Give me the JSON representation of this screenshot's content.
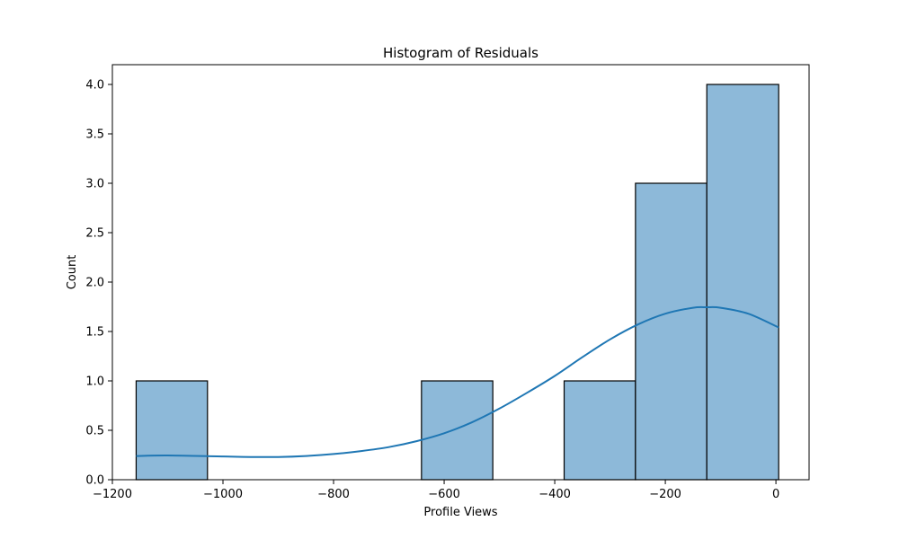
{
  "chart_data": {
    "type": "bar",
    "title": "Histogram of Residuals",
    "xlabel": "Profile Views",
    "ylabel": "Count",
    "xlim": [
      -1200,
      60
    ],
    "ylim": [
      0,
      4.2
    ],
    "x_ticks": [
      -1200,
      -1000,
      -800,
      -600,
      -400,
      -200,
      0
    ],
    "x_tick_labels": [
      "−1200",
      "−1000",
      "−800",
      "−600",
      "−400",
      "−200",
      "0"
    ],
    "y_ticks": [
      0,
      0.5,
      1.0,
      1.5,
      2.0,
      2.5,
      3.0,
      3.5,
      4.0
    ],
    "y_tick_labels": [
      "0.0",
      "0.5",
      "1.0",
      "1.5",
      "2.0",
      "2.5",
      "3.0",
      "3.5",
      "4.0"
    ],
    "bins": [
      {
        "x0": -1157,
        "x1": -1028,
        "count": 1
      },
      {
        "x0": -1028,
        "x1": -899,
        "count": 0
      },
      {
        "x0": -899,
        "x1": -770,
        "count": 0
      },
      {
        "x0": -770,
        "x1": -641,
        "count": 0
      },
      {
        "x0": -641,
        "x1": -512,
        "count": 1
      },
      {
        "x0": -512,
        "x1": -383,
        "count": 0
      },
      {
        "x0": -383,
        "x1": -254,
        "count": 1
      },
      {
        "x0": -254,
        "x1": -125,
        "count": 3
      },
      {
        "x0": -125,
        "x1": 5,
        "count": 4
      }
    ],
    "kde": {
      "x": [
        -1157,
        -1100,
        -1000,
        -950,
        -900,
        -850,
        -800,
        -750,
        -700,
        -650,
        -600,
        -550,
        -500,
        -450,
        -400,
        -350,
        -300,
        -250,
        -200,
        -150,
        -125,
        -100,
        -50,
        5
      ],
      "y": [
        0.24,
        0.245,
        0.235,
        0.23,
        0.23,
        0.24,
        0.26,
        0.29,
        0.33,
        0.39,
        0.47,
        0.58,
        0.72,
        0.88,
        1.05,
        1.24,
        1.42,
        1.57,
        1.68,
        1.74,
        1.745,
        1.74,
        1.68,
        1.54
      ]
    },
    "colors": {
      "bar_fill": "#8db9d9",
      "bar_edge": "#000000",
      "kde_line": "#1f77b4"
    },
    "grid": false,
    "legend": "none"
  }
}
